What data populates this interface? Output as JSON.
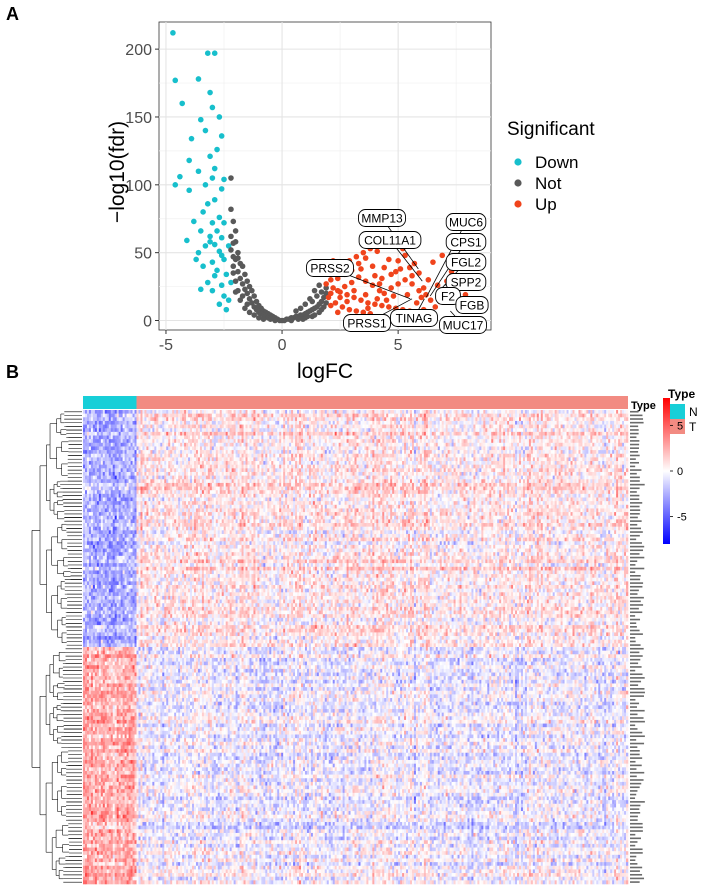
{
  "panel_a": {
    "label": "A",
    "chart_data": {
      "type": "scatter",
      "title": "",
      "xlabel": "logFC",
      "ylabel": "−log10(fdr)",
      "xlim": [
        -5.3,
        9.0
      ],
      "ylim": [
        -7,
        220
      ],
      "xticks": [
        -5,
        0,
        5
      ],
      "yticks": [
        0,
        50,
        100,
        150,
        200
      ],
      "grid": true,
      "legend": {
        "title": "Significant",
        "position": "right",
        "entries": [
          "Down",
          "Not",
          "Up"
        ]
      },
      "series": [
        {
          "name": "Down",
          "color": "#17bfcc",
          "points": [
            [
              -4.7,
              212
            ],
            [
              -3.2,
              197
            ],
            [
              -2.9,
              197
            ],
            [
              -4.6,
              177
            ],
            [
              -3.6,
              178
            ],
            [
              -3.1,
              168
            ],
            [
              -4.3,
              160
            ],
            [
              -3.0,
              157
            ],
            [
              -2.7,
              150
            ],
            [
              -3.5,
              148
            ],
            [
              -3.3,
              140
            ],
            [
              -3.9,
              134
            ],
            [
              -2.6,
              136
            ],
            [
              -2.8,
              126
            ],
            [
              -3.1,
              121
            ],
            [
              -4.0,
              118
            ],
            [
              -2.9,
              112
            ],
            [
              -3.6,
              110
            ],
            [
              -4.4,
              106
            ],
            [
              -4.6,
              100
            ],
            [
              -3.0,
              105
            ],
            [
              -2.5,
              104
            ],
            [
              -3.3,
              100
            ],
            [
              -4.0,
              96
            ],
            [
              -2.6,
              97
            ],
            [
              -2.9,
              89
            ],
            [
              -3.2,
              86
            ],
            [
              -3.4,
              80
            ],
            [
              -2.7,
              76
            ],
            [
              -3.8,
              73
            ],
            [
              -3.0,
              72
            ],
            [
              -2.5,
              72
            ],
            [
              -3.5,
              66
            ],
            [
              -2.8,
              66
            ],
            [
              -3.1,
              62
            ],
            [
              -2.6,
              61
            ],
            [
              -4.1,
              59
            ],
            [
              -2.9,
              56
            ],
            [
              -3.3,
              55
            ],
            [
              -3.6,
              50
            ],
            [
              -2.7,
              51
            ],
            [
              -2.5,
              45
            ],
            [
              -3.0,
              43
            ],
            [
              -3.4,
              40
            ],
            [
              -2.8,
              37
            ],
            [
              -2.4,
              34
            ],
            [
              -3.2,
              28
            ],
            [
              -2.6,
              26
            ],
            [
              -3.0,
              22
            ],
            [
              -2.5,
              18
            ],
            [
              -2.3,
              15
            ],
            [
              -2.7,
              12
            ],
            [
              -2.4,
              8
            ],
            [
              -3.1,
              58
            ],
            [
              -2.3,
              55
            ],
            [
              -2.6,
              48
            ],
            [
              -3.7,
              45
            ],
            [
              -2.9,
              33
            ],
            [
              -2.2,
              28
            ],
            [
              -3.5,
              23
            ]
          ]
        },
        {
          "name": "Not",
          "color": "#595959",
          "points": [
            [
              -2.2,
              105
            ],
            [
              -2.2,
              82
            ],
            [
              -2.1,
              73
            ],
            [
              -2.0,
              66
            ],
            [
              -2.1,
              57
            ],
            [
              -2.2,
              52
            ],
            [
              -1.9,
              50
            ],
            [
              -2.0,
              45
            ],
            [
              -1.8,
              42
            ],
            [
              -1.7,
              40
            ],
            [
              -1.9,
              36
            ],
            [
              -1.6,
              34
            ],
            [
              -1.8,
              31
            ],
            [
              -1.5,
              29
            ],
            [
              -1.7,
              27
            ],
            [
              -1.4,
              25
            ],
            [
              -1.6,
              23
            ],
            [
              -1.3,
              22
            ],
            [
              -1.5,
              20
            ],
            [
              -1.2,
              18
            ],
            [
              -1.4,
              16
            ],
            [
              -1.1,
              14
            ],
            [
              -1.3,
              13
            ],
            [
              -1.0,
              11
            ],
            [
              -1.2,
              10
            ],
            [
              -0.9,
              9
            ],
            [
              -1.1,
              8
            ],
            [
              -0.8,
              7
            ],
            [
              -1.0,
              6
            ],
            [
              -0.7,
              6
            ],
            [
              -0.9,
              5
            ],
            [
              -0.6,
              5
            ],
            [
              -0.8,
              4
            ],
            [
              -0.5,
              4
            ],
            [
              -0.7,
              3
            ],
            [
              -0.4,
              3
            ],
            [
              -0.6,
              2
            ],
            [
              -0.3,
              2
            ],
            [
              -0.5,
              1
            ],
            [
              -0.2,
              1
            ],
            [
              -0.1,
              0
            ],
            [
              0.0,
              0
            ],
            [
              0.1,
              0
            ],
            [
              0.2,
              1
            ],
            [
              0.3,
              1
            ],
            [
              0.4,
              2
            ],
            [
              0.5,
              2
            ],
            [
              0.6,
              3
            ],
            [
              0.7,
              3
            ],
            [
              0.8,
              4
            ],
            [
              0.9,
              4
            ],
            [
              1.0,
              5
            ],
            [
              1.1,
              6
            ],
            [
              1.2,
              7
            ],
            [
              1.3,
              8
            ],
            [
              1.4,
              9
            ],
            [
              1.5,
              10
            ],
            [
              1.6,
              12
            ],
            [
              1.7,
              14
            ],
            [
              1.8,
              17
            ],
            [
              1.3,
              14
            ],
            [
              1.5,
              18
            ],
            [
              1.7,
              21
            ],
            [
              1.9,
              24
            ],
            [
              1.6,
              26
            ],
            [
              1.4,
              22
            ],
            [
              1.2,
              16
            ],
            [
              1.0,
              12
            ],
            [
              0.8,
              9
            ],
            [
              0.6,
              7
            ],
            [
              -1.5,
              12
            ],
            [
              -1.7,
              18
            ],
            [
              -1.9,
              22
            ],
            [
              -2.0,
              29
            ],
            [
              -2.1,
              35
            ],
            [
              -1.8,
              15
            ],
            [
              -2.0,
              21
            ],
            [
              -2.1,
              40
            ],
            [
              -1.6,
              9
            ],
            [
              -1.4,
              6
            ],
            [
              -1.2,
              4
            ],
            [
              -1.0,
              2
            ],
            [
              -0.8,
              1
            ],
            [
              0.4,
              0
            ],
            [
              0.7,
              1
            ],
            [
              1.0,
              2
            ],
            [
              1.3,
              3
            ],
            [
              1.6,
              6
            ],
            [
              1.8,
              10
            ],
            [
              1.9,
              13
            ],
            [
              -2.2,
              62
            ],
            [
              -2.0,
              58
            ],
            [
              -1.9,
              46
            ],
            [
              -2.1,
              47
            ],
            [
              -0.3,
              0
            ],
            [
              0.9,
              1
            ],
            [
              1.1,
              3
            ],
            [
              1.4,
              4
            ],
            [
              1.7,
              8
            ],
            [
              1.9,
              20
            ]
          ]
        },
        {
          "name": "Up",
          "color": "#f0441c",
          "points": [
            [
              7.9,
              19
            ],
            [
              7.1,
              29
            ],
            [
              6.8,
              14
            ],
            [
              6.6,
              10
            ],
            [
              6.2,
              19
            ],
            [
              6.0,
              17
            ],
            [
              6.5,
              43
            ],
            [
              6.9,
              48
            ],
            [
              7.3,
              36
            ],
            [
              7.6,
              23
            ],
            [
              5.9,
              35
            ],
            [
              4.1,
              51
            ],
            [
              5.3,
              48
            ],
            [
              5.7,
              42
            ],
            [
              5.1,
              38
            ],
            [
              4.7,
              34
            ],
            [
              4.3,
              31
            ],
            [
              3.9,
              40
            ],
            [
              3.6,
              46
            ],
            [
              3.3,
              42
            ],
            [
              3.0,
              37
            ],
            [
              2.7,
              34
            ],
            [
              2.4,
              31
            ],
            [
              2.1,
              30
            ],
            [
              1.9,
              27
            ],
            [
              2.2,
              24
            ],
            [
              2.5,
              21
            ],
            [
              2.8,
              19
            ],
            [
              3.1,
              17
            ],
            [
              3.4,
              15
            ],
            [
              3.7,
              13
            ],
            [
              4.0,
              12
            ],
            [
              4.3,
              11
            ],
            [
              4.6,
              10
            ],
            [
              4.9,
              9
            ],
            [
              5.2,
              8
            ],
            [
              5.5,
              7
            ],
            [
              5.8,
              13
            ],
            [
              6.1,
              24
            ],
            [
              2.0,
              17
            ],
            [
              2.3,
              13
            ],
            [
              2.6,
              10
            ],
            [
              2.9,
              8
            ],
            [
              3.2,
              7
            ],
            [
              3.5,
              6
            ],
            [
              3.8,
              5
            ],
            [
              4.1,
              16
            ],
            [
              4.4,
              20
            ],
            [
              4.7,
              24
            ],
            [
              5.0,
              27
            ],
            [
              5.3,
              30
            ],
            [
              5.6,
              27
            ],
            [
              4.8,
              18
            ],
            [
              4.5,
              15
            ],
            [
              4.2,
              22
            ],
            [
              3.9,
              26
            ],
            [
              3.6,
              29
            ],
            [
              3.3,
              32
            ],
            [
              3.0,
              28
            ],
            [
              2.7,
              25
            ],
            [
              2.4,
              22
            ],
            [
              2.1,
              20
            ],
            [
              2.0,
              35
            ],
            [
              2.3,
              38
            ],
            [
              2.6,
              40
            ],
            [
              2.9,
              44
            ],
            [
              3.2,
              47
            ],
            [
              3.5,
              50
            ],
            [
              3.8,
              53
            ],
            [
              4.4,
              39
            ],
            [
              5.0,
              44
            ],
            [
              5.6,
              33
            ],
            [
              6.3,
              30
            ],
            [
              6.7,
              26
            ],
            [
              7.0,
              22
            ],
            [
              7.4,
              27
            ],
            [
              5.4,
              19
            ],
            [
              5.9,
              22
            ],
            [
              6.4,
              15
            ],
            [
              3.1,
              22
            ],
            [
              2.8,
              14
            ],
            [
              3.6,
              19
            ],
            [
              4.0,
              33
            ],
            [
              4.6,
              45
            ],
            [
              5.2,
              53
            ],
            [
              5.8,
              57
            ],
            [
              2.2,
              44
            ],
            [
              2.5,
              17
            ],
            [
              3.4,
              38
            ],
            [
              4.9,
              36
            ],
            [
              6.1,
              8
            ],
            [
              3.7,
              9
            ],
            [
              2.1,
              11
            ],
            [
              2.4,
              6
            ],
            [
              4.2,
              27
            ],
            [
              5.5,
              39
            ]
          ]
        }
      ],
      "annotations": [
        {
          "text": "MMP13",
          "x": 5.87,
          "y": 38
        },
        {
          "text": "COL11A1",
          "x": 6.04,
          "y": 29
        },
        {
          "text": "MUC6",
          "x": 6.21,
          "y": 17
        },
        {
          "text": "CPS1",
          "x": 6.38,
          "y": 18
        },
        {
          "text": "FGL2",
          "x": 6.73,
          "y": 21
        },
        {
          "text": "SPP2",
          "x": 6.97,
          "y": 26
        },
        {
          "text": "PRSS2",
          "x": 5.52,
          "y": 16
        },
        {
          "text": "F2",
          "x": 6.76,
          "y": 18
        },
        {
          "text": "FGB",
          "x": 7.6,
          "y": 10
        },
        {
          "text": "MUC17",
          "x": 7.25,
          "y": 7
        },
        {
          "text": "PRSS1",
          "x": 5.6,
          "y": 16
        },
        {
          "text": "TINAG",
          "x": 6.13,
          "y": 16
        }
      ]
    }
  },
  "panel_b": {
    "label": "B",
    "chart_data": {
      "type": "heatmap",
      "n_rows": 130,
      "n_cols": 275,
      "column_annotation": {
        "title": "Type",
        "groups": [
          {
            "name": "N",
            "count": 27,
            "color": "#17cfd8"
          },
          {
            "name": "T",
            "count": 248,
            "color": "#f28b82"
          }
        ]
      },
      "color_scale": {
        "min": -8,
        "max": 8,
        "ticks": [
          5,
          0,
          -5
        ],
        "colors": [
          "#0000ff",
          "#ffffff",
          "#ff0000"
        ]
      },
      "legend_title_type": "Type",
      "legend_items": [
        "N",
        "T"
      ],
      "pattern": "Top ~half of genes low (blue) in N and higher in T; bottom ~half high (red) in N and lower in T; row dendrogram at left; tiny gene labels at right"
    }
  }
}
